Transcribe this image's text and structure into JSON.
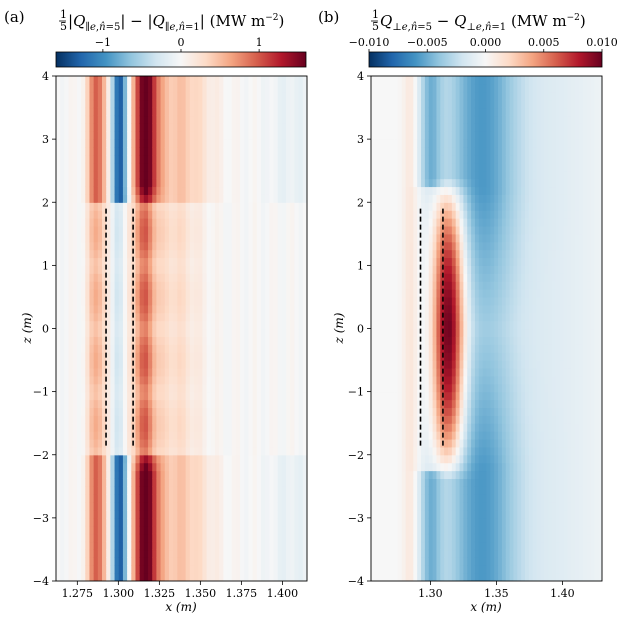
{
  "panels": [
    {
      "letter": "(a)",
      "colorbar_title": "1/5|Q∥e,n̂=5| − |Q∥e,n̂=1| (MW m⁻²)",
      "colorbar_ticks": [
        {
          "value": -1,
          "label": "−1"
        },
        {
          "value": 0,
          "label": "0"
        },
        {
          "value": 1,
          "label": "1"
        }
      ],
      "colorbar_range": [
        -1.6,
        1.6
      ],
      "xlabel": "x (m)",
      "ylabel": "z (m)"
    },
    {
      "letter": "(b)",
      "colorbar_title": "1/5Q⊥e,n̂=5 − Q⊥e,n̂=1 (MW m⁻²)",
      "colorbar_ticks": [
        {
          "value": -0.01,
          "label": "−0.010"
        },
        {
          "value": -0.005,
          "label": "−0.005"
        },
        {
          "value": 0.0,
          "label": "0.000"
        },
        {
          "value": 0.005,
          "label": "0.005"
        },
        {
          "value": 0.01,
          "label": "0.010"
        }
      ],
      "colorbar_range": [
        -0.01,
        0.01
      ],
      "xlabel": "x (m)",
      "ylabel": "z (m)"
    }
  ],
  "chart_data": [
    {
      "type": "heatmap",
      "panel": "(a)",
      "x_range": [
        1.262,
        1.415
      ],
      "y_range": [
        -4,
        4
      ],
      "x_ticks": [
        {
          "value": 1.275,
          "label": "1.275"
        },
        {
          "value": 1.3,
          "label": "1.300"
        },
        {
          "value": 1.325,
          "label": "1.325"
        },
        {
          "value": 1.35,
          "label": "1.350"
        },
        {
          "value": 1.375,
          "label": "1.375"
        },
        {
          "value": 1.4,
          "label": "1.400"
        }
      ],
      "y_ticks": [
        {
          "value": 4,
          "label": "4"
        },
        {
          "value": 3,
          "label": "3"
        },
        {
          "value": 2,
          "label": "2"
        },
        {
          "value": 1,
          "label": "1"
        },
        {
          "value": 0,
          "label": "0"
        },
        {
          "value": -1,
          "label": "−1"
        },
        {
          "value": -2,
          "label": "−2"
        },
        {
          "value": -3,
          "label": "−3"
        },
        {
          "value": -4,
          "label": "−4"
        }
      ],
      "colormap": "RdBu_r",
      "dashed_lines": [
        {
          "x": 1.2925,
          "z": [
            -1.9,
            1.9
          ]
        },
        {
          "x": 1.309,
          "z": [
            -1.9,
            1.9
          ]
        }
      ]
    },
    {
      "type": "heatmap",
      "panel": "(b)",
      "x_range": [
        1.255,
        1.43
      ],
      "y_range": [
        -4,
        4
      ],
      "x_ticks": [
        {
          "value": 1.3,
          "label": "1.30"
        },
        {
          "value": 1.35,
          "label": "1.35"
        },
        {
          "value": 1.4,
          "label": "1.40"
        }
      ],
      "y_ticks": [
        {
          "value": 4,
          "label": "4"
        },
        {
          "value": 3,
          "label": "3"
        },
        {
          "value": 2,
          "label": "2"
        },
        {
          "value": 1,
          "label": "1"
        },
        {
          "value": 0,
          "label": "0"
        },
        {
          "value": -1,
          "label": "−1"
        },
        {
          "value": -2,
          "label": "−2"
        },
        {
          "value": -3,
          "label": "−3"
        },
        {
          "value": -4,
          "label": "−4"
        }
      ],
      "colormap": "RdBu_r",
      "dashed_lines": [
        {
          "x": 1.2925,
          "z": [
            -1.9,
            1.9
          ]
        },
        {
          "x": 1.3095,
          "z": [
            -1.9,
            1.9
          ]
        }
      ]
    }
  ]
}
